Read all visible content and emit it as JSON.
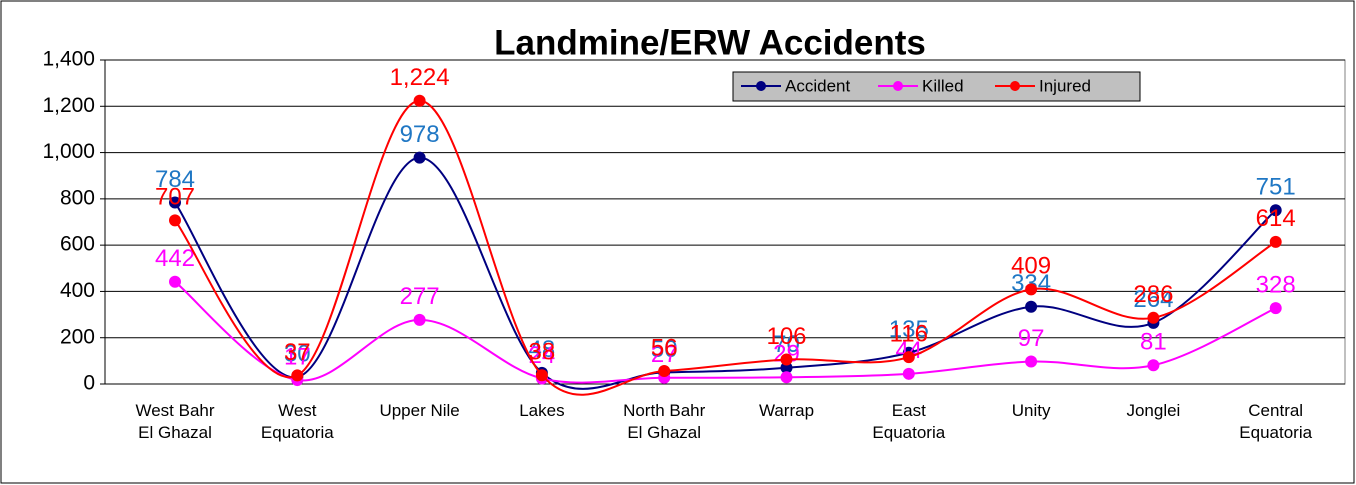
{
  "chart_data": {
    "type": "line",
    "title": "Landmine/ERW Accidents",
    "categories": [
      "West Bahr\nEl Ghazal",
      "West\nEquatoria",
      "Upper Nile",
      "Lakes",
      "North Bahr\nEl Ghazal",
      "Warrap",
      "East\nEquatoria",
      "Unity",
      "Jonglei",
      "Central\nEquatoria"
    ],
    "series": [
      {
        "name": "Accident",
        "color": "#000080",
        "label_color": "#1f77c4",
        "values": [
          784,
          30,
          978,
          48,
          50,
          70,
          135,
          334,
          264,
          751
        ]
      },
      {
        "name": "Killed",
        "color": "#ff00ff",
        "label_color": "#ff00ff",
        "values": [
          442,
          17,
          277,
          24,
          27,
          29,
          44,
          97,
          81,
          328
        ]
      },
      {
        "name": "Injured",
        "color": "#ff0000",
        "label_color": "#ff0000",
        "values": [
          707,
          37,
          1224,
          38,
          56,
          106,
          116,
          409,
          286,
          614
        ],
        "value_labels": [
          "707",
          "37",
          "1,224",
          "38",
          "56",
          "106",
          "116",
          "409",
          "286",
          "614"
        ]
      }
    ],
    "ylim": [
      0,
      1400
    ],
    "yticks": [
      0,
      200,
      400,
      600,
      800,
      {
        "value": 1000,
        "label": "1,000"
      },
      {
        "value": 1200,
        "label": "1,200"
      },
      {
        "value": 1400,
        "label": "1,400"
      }
    ],
    "grid": true,
    "legend": "top-right"
  }
}
